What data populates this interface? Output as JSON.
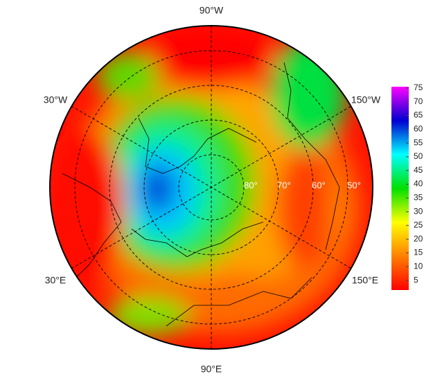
{
  "map": {
    "lon_labels": [
      "90°W",
      "30°W",
      "150°W",
      "30°E",
      "150°E",
      "90°E"
    ],
    "lat_labels": [
      "80°",
      "70°",
      "60°",
      "50°"
    ],
    "colorbar": {
      "clim": [
        1.5,
        75.5
      ],
      "ticks": [
        5,
        10,
        15,
        20,
        25,
        30,
        35,
        40,
        45,
        50,
        55,
        60,
        65,
        70,
        75
      ],
      "colormap": [
        "#ff0000",
        "#ff8000",
        "#ffff00",
        "#00e000",
        "#00ffff",
        "#0000d0",
        "#ff00ff"
      ]
    }
  }
}
